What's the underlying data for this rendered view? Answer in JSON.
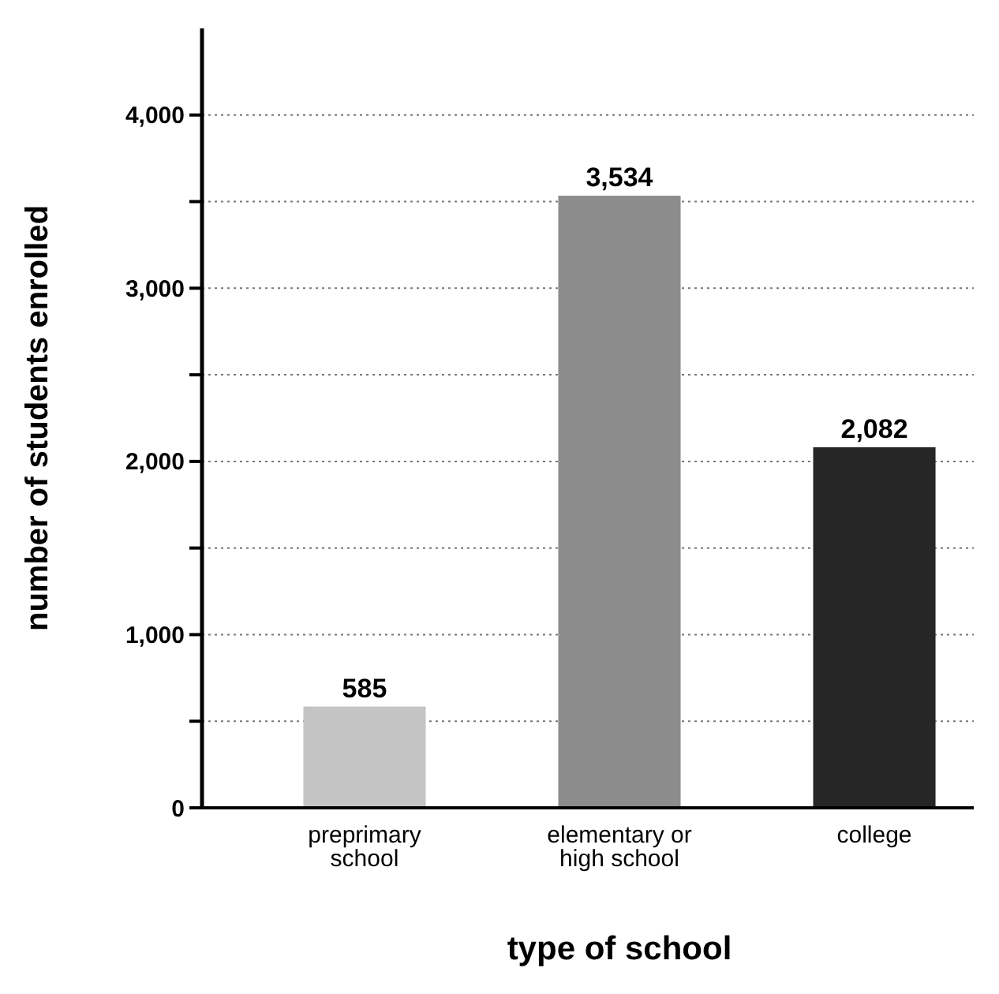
{
  "chart_data": {
    "type": "bar",
    "xlabel": "type of school",
    "ylabel": "number of students enrolled",
    "categories": [
      "preprimary school",
      "elementary or high school",
      "college"
    ],
    "values": [
      585,
      3534,
      2082
    ],
    "value_labels": [
      "585",
      "3,534",
      "2,082"
    ],
    "colors": [
      "#c4c4c4",
      "#8c8c8c",
      "#262626"
    ],
    "ylim": [
      0,
      4500
    ],
    "yticks": [
      {
        "value": 0,
        "label": "0"
      },
      {
        "value": 500,
        "label": null
      },
      {
        "value": 1000,
        "label": "1,000"
      },
      {
        "value": 1500,
        "label": null
      },
      {
        "value": 2000,
        "label": "2,000"
      },
      {
        "value": 2500,
        "label": null
      },
      {
        "value": 3000,
        "label": "3,000"
      },
      {
        "value": 3500,
        "label": null
      },
      {
        "value": 4000,
        "label": "4,000"
      }
    ],
    "grid": "y"
  }
}
